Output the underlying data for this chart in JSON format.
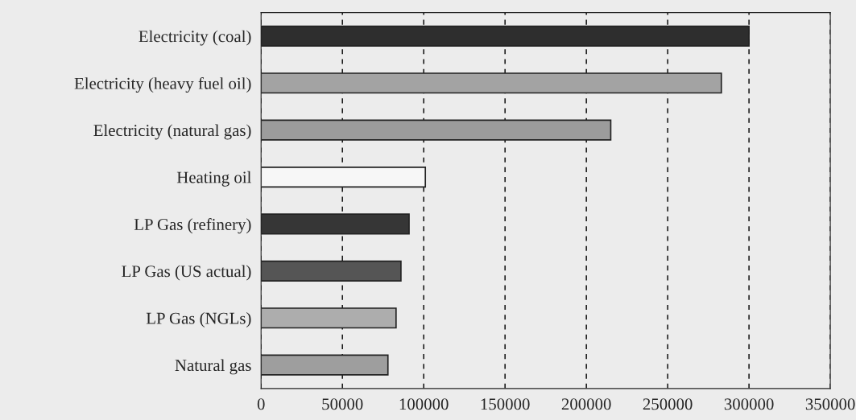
{
  "chart_data": {
    "type": "bar",
    "orientation": "horizontal",
    "categories": [
      "Electricity (coal)",
      "Electricity (heavy fuel oil)",
      "Electricity (natural gas)",
      "Heating oil",
      "LP Gas (refinery)",
      "LP Gas (US actual)",
      "LP Gas (NGLs)",
      "Natural gas"
    ],
    "values": [
      300000,
      283000,
      215000,
      101000,
      91000,
      86000,
      83000,
      78000
    ],
    "colors": [
      "#2e2e2e",
      "#a3a3a3",
      "#9c9c9c",
      "#f7f7f7",
      "#363636",
      "#555555",
      "#adadad",
      "#9e9e9e"
    ],
    "xlim": [
      0,
      350000
    ],
    "xticks": [
      0,
      50000,
      100000,
      150000,
      200000,
      250000,
      300000,
      350000
    ],
    "grid": "x",
    "line_style": "dashed"
  }
}
